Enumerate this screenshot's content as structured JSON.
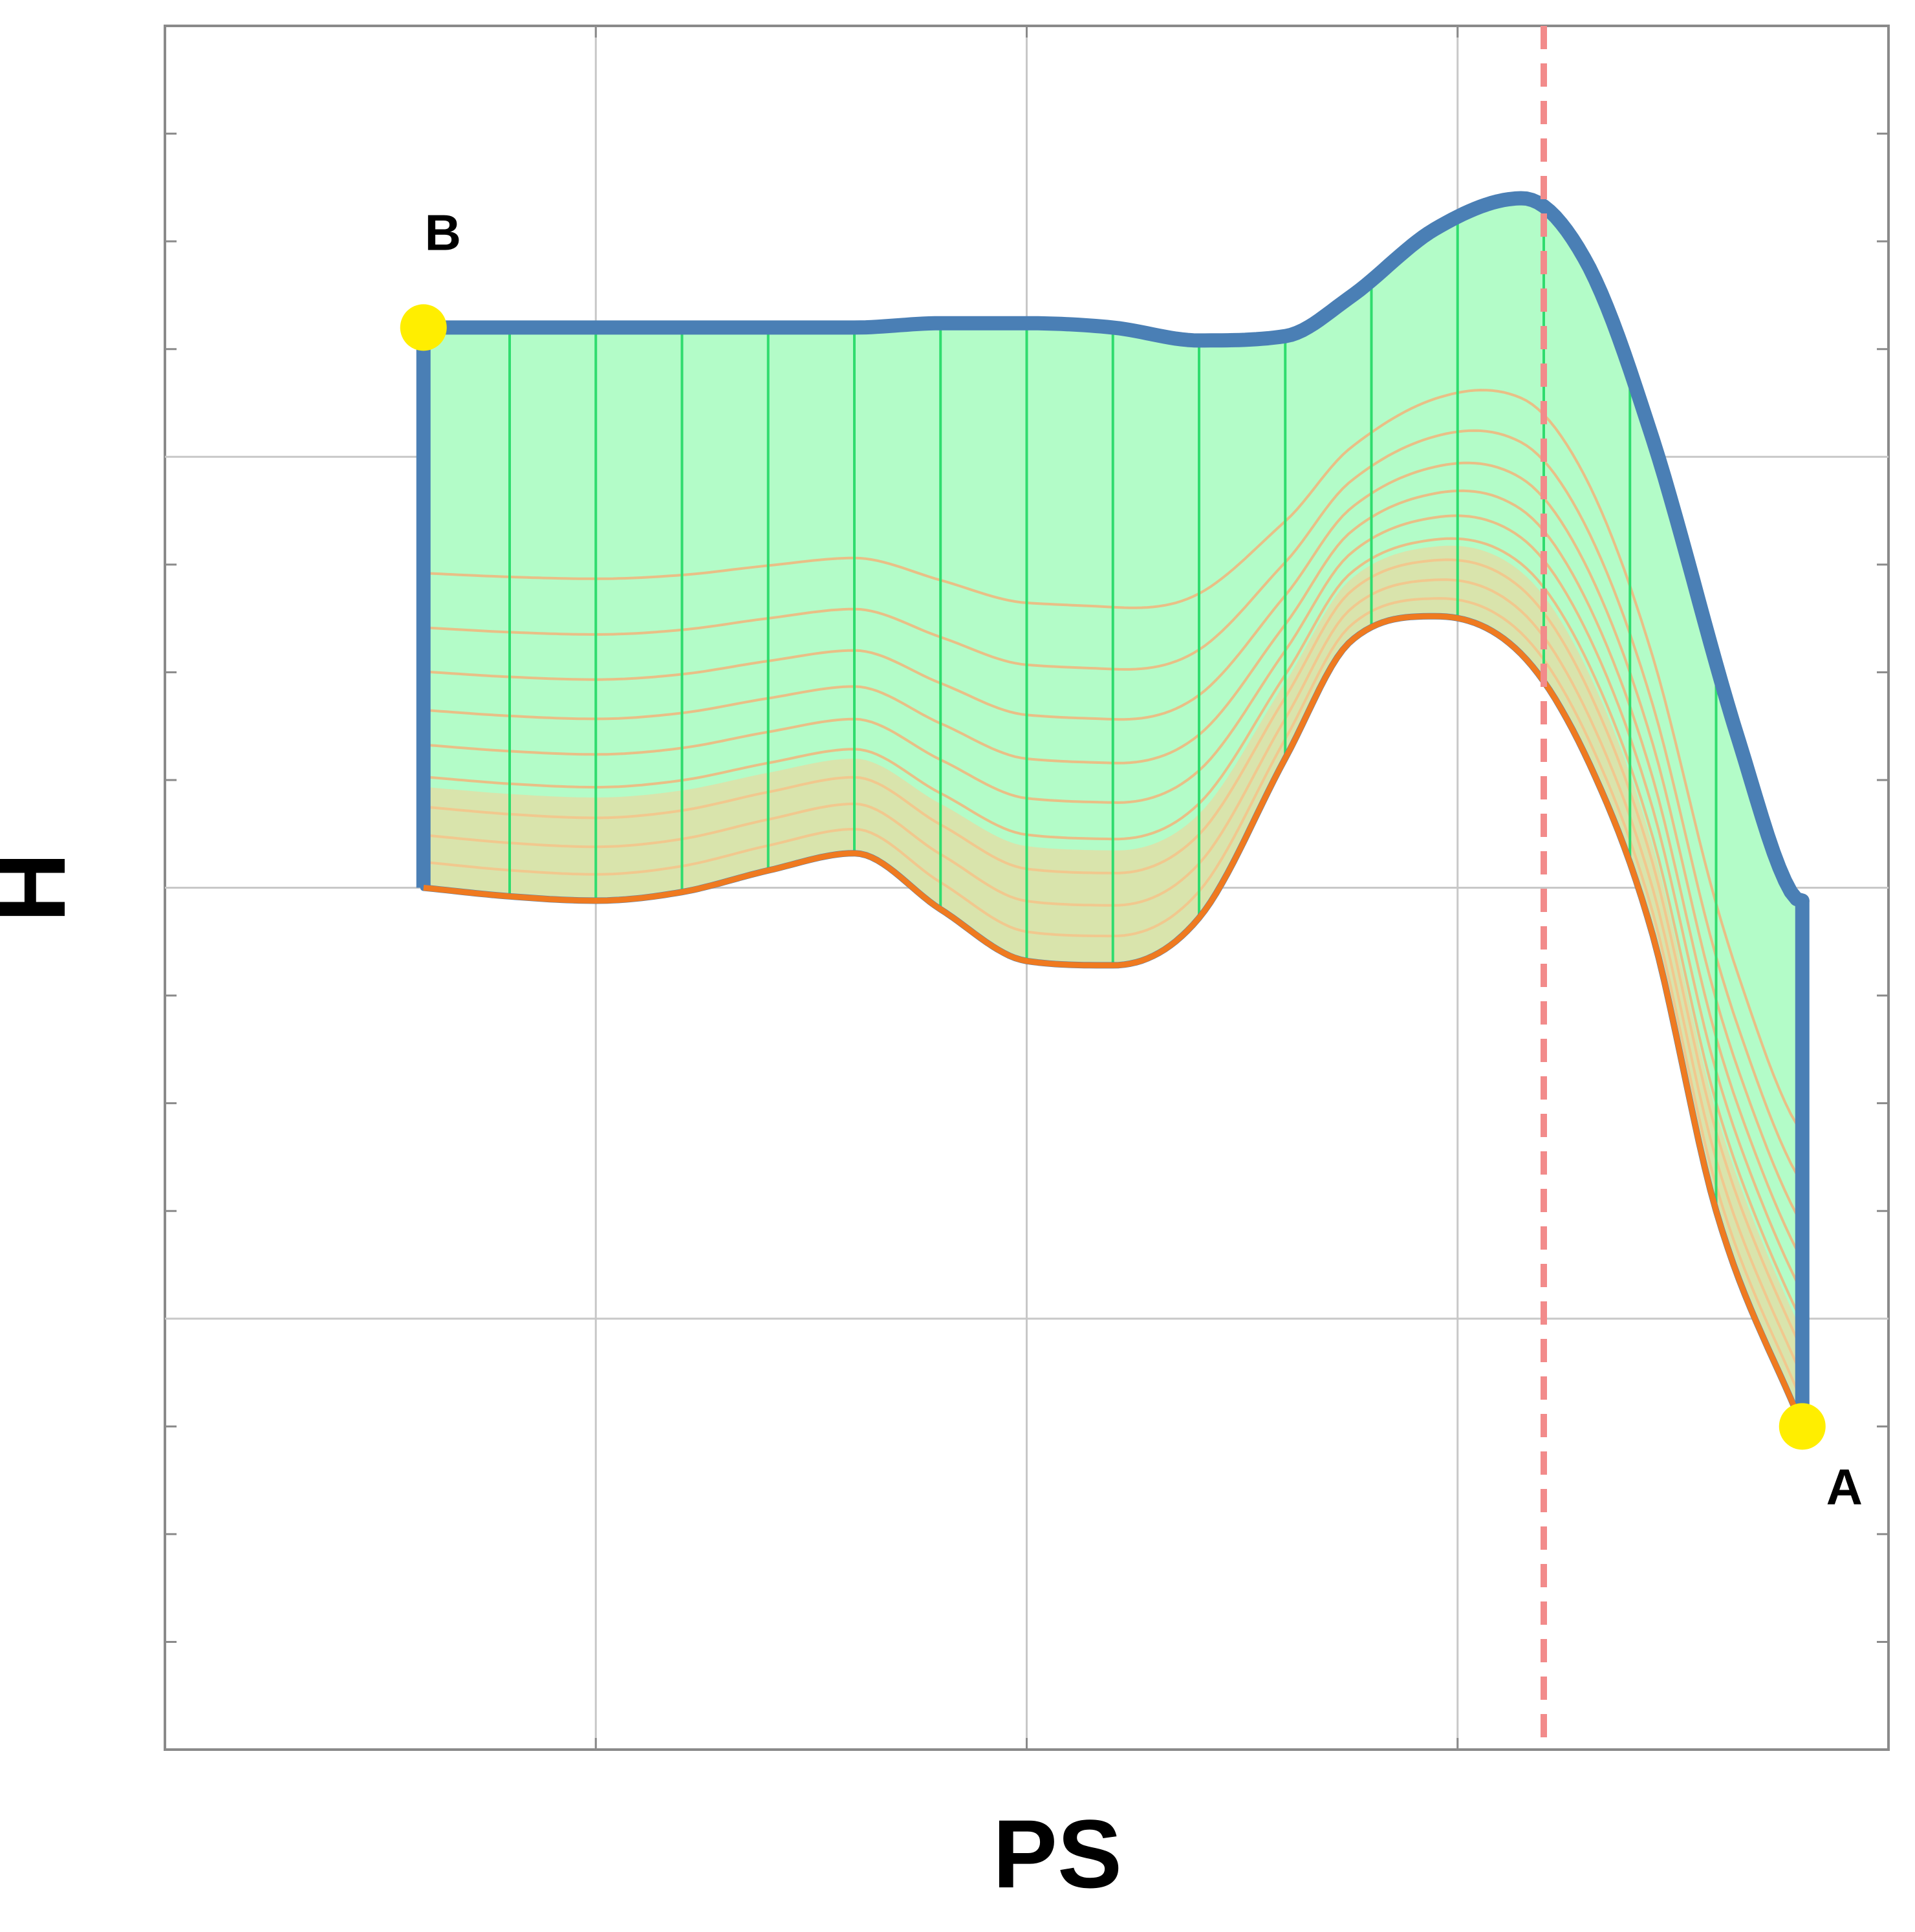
{
  "chart_data": {
    "type": "area",
    "xlabel": "PS",
    "ylabel": "H",
    "xlim": [
      0,
      4
    ],
    "ylim": [
      0,
      4
    ],
    "grid": true,
    "x_gridlines": [
      1,
      2,
      3
    ],
    "y_gridlines": [
      1,
      2,
      3
    ],
    "x_minor_ticks": [
      1,
      2,
      3
    ],
    "y_minor_ticks": [
      0.25,
      0.5,
      0.75,
      1.25,
      1.5,
      1.75,
      2.25,
      2.5,
      2.75,
      3.25,
      3.5,
      3.75
    ],
    "upper_boundary": [
      [
        0.6,
        3.3
      ],
      [
        0.8,
        3.3
      ],
      [
        1.0,
        3.3
      ],
      [
        1.2,
        3.3
      ],
      [
        1.4,
        3.3
      ],
      [
        1.6,
        3.3
      ],
      [
        1.8,
        3.31
      ],
      [
        2.0,
        3.31
      ],
      [
        2.2,
        3.3
      ],
      [
        2.4,
        3.27
      ],
      [
        2.6,
        3.28
      ],
      [
        2.75,
        3.37
      ],
      [
        2.95,
        3.53
      ],
      [
        3.15,
        3.6
      ],
      [
        3.3,
        3.45
      ],
      [
        3.45,
        3.05
      ],
      [
        3.65,
        2.35
      ],
      [
        3.78,
        1.98
      ],
      [
        3.8,
        1.97
      ]
    ],
    "lower_boundary": [
      [
        0.6,
        2.0
      ],
      [
        0.8,
        1.98
      ],
      [
        1.0,
        1.97
      ],
      [
        1.2,
        1.99
      ],
      [
        1.4,
        2.04
      ],
      [
        1.6,
        2.08
      ],
      [
        1.8,
        1.95
      ],
      [
        2.0,
        1.83
      ],
      [
        2.2,
        1.82
      ],
      [
        2.4,
        1.93
      ],
      [
        2.6,
        2.3
      ],
      [
        2.75,
        2.57
      ],
      [
        2.95,
        2.63
      ],
      [
        3.15,
        2.54
      ],
      [
        3.3,
        2.3
      ],
      [
        3.45,
        1.9
      ],
      [
        3.6,
        1.25
      ],
      [
        3.8,
        0.75
      ]
    ],
    "vertical_marker": {
      "x": 3.2,
      "color": "#f28b8b",
      "style": "dashed"
    },
    "points": [
      {
        "label": "B",
        "x": 0.6,
        "y": 3.3
      },
      {
        "label": "A",
        "x": 3.8,
        "y": 0.75
      }
    ],
    "interior_contour_count": 9,
    "section_line_x": [
      0.8,
      1.0,
      1.2,
      1.4,
      1.6,
      1.8,
      2.0,
      2.2,
      2.4,
      2.6,
      2.8,
      3.0,
      3.2,
      3.4,
      3.6
    ],
    "colors": {
      "fill_top": "#b3fcc8",
      "fill_bottom": "#f7cf96",
      "upper_outline": "#4a7fb5",
      "lower_line": "#ef7a20",
      "contour": "#f2b47a",
      "section": "#2fdc6e",
      "marker_point": "#ffee00",
      "grid": "#c8c8c8",
      "frame": "#8a8a8a"
    }
  }
}
